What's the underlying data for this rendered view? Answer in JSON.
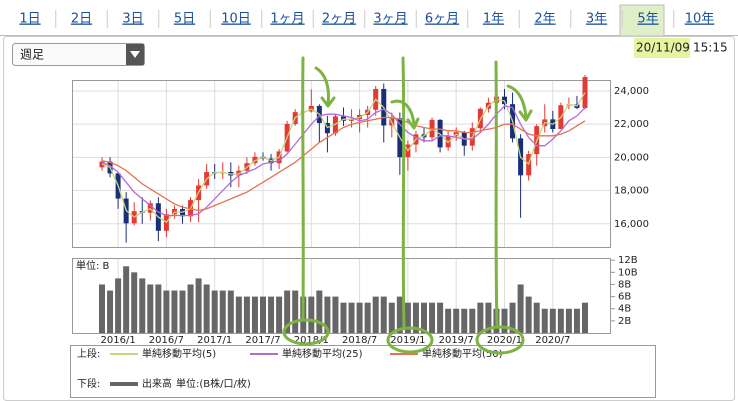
{
  "tabs": [
    "1日",
    "2日",
    "3日",
    "5日",
    "10日",
    "1ヶ月",
    "2ヶ月",
    "3ヶ月",
    "6ヶ月",
    "1年",
    "2年",
    "3年",
    "5年",
    "10年"
  ],
  "dropdown": "週足",
  "date": "20/11/09",
  "time": "15:15",
  "legend": {
    "upper_label": "上段:",
    "lower_label": "下段:",
    "volume_unit": "単位:(B株/口/枚)"
  },
  "chart_data": {
    "type": "candlestick",
    "x": [
      "2015/11",
      "2015/12",
      "2016/1",
      "2016/2",
      "2016/3",
      "2016/4",
      "2016/5",
      "2016/6",
      "2016/7",
      "2016/8",
      "2016/9",
      "2016/10",
      "2016/11",
      "2016/12",
      "2017/1",
      "2017/2",
      "2017/3",
      "2017/4",
      "2017/5",
      "2017/6",
      "2017/7",
      "2017/8",
      "2017/9",
      "2017/10",
      "2017/11",
      "2017/12",
      "2018/1",
      "2018/2",
      "2018/3",
      "2018/4",
      "2018/5",
      "2018/6",
      "2018/7",
      "2018/8",
      "2018/9",
      "2018/10",
      "2018/11",
      "2018/12",
      "2019/1",
      "2019/2",
      "2019/3",
      "2019/4",
      "2019/5",
      "2019/6",
      "2019/7",
      "2019/8",
      "2019/9",
      "2019/10",
      "2019/11",
      "2019/12",
      "2020/1",
      "2020/2",
      "2020/3",
      "2020/4",
      "2020/5",
      "2020/6",
      "2020/7",
      "2020/8",
      "2020/9",
      "2020/10",
      "2020/11"
    ],
    "open": [
      19400,
      19747,
      19034,
      17518,
      16027,
      16759,
      16666,
      17235,
      15576,
      16569,
      16887,
      16450,
      17425,
      18308,
      19114,
      19041,
      19119,
      18909,
      19197,
      19651,
      20033,
      19925,
      19646,
      20356,
      22012,
      22725,
      22765,
      23098,
      22068,
      21454,
      22468,
      22202,
      22305,
      22554,
      22865,
      24120,
      21920,
      22351,
      20015,
      20773,
      21385,
      21206,
      22259,
      20601,
      21276,
      21522,
      20704,
      21756,
      22927,
      23294,
      23657,
      23205,
      21143,
      18917,
      20194,
      21878,
      22288,
      21710,
      23140,
      23185,
      22977
    ],
    "high": [
      20012,
      20012,
      19100,
      17900,
      17300,
      17600,
      17400,
      17600,
      16900,
      17100,
      17100,
      17600,
      18700,
      19600,
      19600,
      19700,
      19700,
      19500,
      20000,
      20300,
      20300,
      20200,
      20500,
      22200,
      22900,
      23000,
      24100,
      23200,
      22500,
      22600,
      23000,
      22900,
      22900,
      23100,
      24300,
      24448,
      22700,
      22700,
      21000,
      21600,
      21800,
      22400,
      22300,
      21600,
      21800,
      21600,
      22100,
      23000,
      23600,
      24100,
      24115,
      23900,
      21400,
      20400,
      22000,
      23200,
      22800,
      23300,
      23600,
      23700,
      24962
    ],
    "low": [
      19200,
      18800,
      16900,
      14865,
      15900,
      16000,
      16200,
      14952,
      15200,
      16300,
      16000,
      16100,
      16100,
      18100,
      18700,
      18700,
      18200,
      18200,
      19000,
      19500,
      19800,
      19200,
      19300,
      20300,
      21900,
      22200,
      22700,
      20900,
      20300,
      21300,
      21900,
      21800,
      21500,
      21800,
      22500,
      20900,
      21200,
      18949,
      19200,
      20300,
      20900,
      21000,
      20300,
      20400,
      21000,
      20100,
      20400,
      21600,
      22700,
      23100,
      22900,
      20900,
      16358,
      18600,
      19500,
      21500,
      21500,
      21700,
      22900,
      22900,
      22900
    ],
    "close": [
      19747,
      19034,
      17518,
      16027,
      16759,
      16666,
      17235,
      15576,
      16569,
      16887,
      16450,
      17425,
      18308,
      19114,
      19041,
      19119,
      18909,
      19197,
      19651,
      20033,
      19925,
      19646,
      20356,
      22012,
      22725,
      22765,
      23098,
      22068,
      21454,
      22468,
      22202,
      22305,
      22554,
      22865,
      24120,
      21920,
      22351,
      20015,
      20773,
      21385,
      21206,
      22259,
      20601,
      21276,
      21522,
      20704,
      21756,
      22927,
      23294,
      23657,
      23205,
      21143,
      18917,
      20194,
      21878,
      22288,
      21710,
      23140,
      23185,
      22977,
      24839
    ],
    "up_color": "#e53935",
    "down_color": "#1a2f7a",
    "series": [
      {
        "name": "単純移動平均(5)",
        "color": "#c5d67a",
        "values": [
          19600,
          19400,
          18300,
          16800,
          16400,
          16700,
          16900,
          16400,
          16100,
          16700,
          16700,
          16900,
          17900,
          18700,
          19100,
          19100,
          19000,
          19000,
          19400,
          19800,
          20000,
          19800,
          20000,
          21200,
          22400,
          22700,
          22900,
          22600,
          21800,
          22000,
          22300,
          22300,
          22400,
          22700,
          23500,
          23000,
          22100,
          21200,
          20400,
          21100,
          21300,
          21700,
          21400,
          20900,
          21400,
          21100,
          21200,
          22300,
          23100,
          23500,
          23400,
          22200,
          20000,
          19600,
          21000,
          22100,
          22000,
          22400,
          23200,
          23100,
          23900
        ]
      },
      {
        "name": "単純移動平均(25)",
        "color": "#b36ad9",
        "values": [
          19700,
          19500,
          19100,
          18500,
          17900,
          17500,
          17100,
          16700,
          16500,
          16500,
          16500,
          16500,
          16600,
          17000,
          17500,
          18000,
          18500,
          18900,
          19100,
          19300,
          19600,
          19700,
          19800,
          20200,
          20800,
          21400,
          22000,
          22500,
          22600,
          22600,
          22500,
          22400,
          22200,
          22300,
          22700,
          22900,
          22600,
          22000,
          21500,
          21200,
          21000,
          21000,
          21300,
          21300,
          21200,
          21100,
          21100,
          21500,
          22000,
          22600,
          23100,
          23000,
          22000,
          21200,
          20700,
          20700,
          21100,
          21600,
          22200,
          22500,
          23000
        ]
      },
      {
        "name": "単純移動平均(50)",
        "color": "#e8724f",
        "values": [
          19800,
          19700,
          19500,
          19200,
          18800,
          18400,
          18100,
          17800,
          17500,
          17200,
          17000,
          16900,
          16800,
          16900,
          17100,
          17300,
          17500,
          17700,
          17900,
          18200,
          18500,
          18800,
          19100,
          19400,
          19700,
          20100,
          20500,
          20900,
          21200,
          21500,
          21800,
          22000,
          22100,
          22200,
          22300,
          22400,
          22400,
          22300,
          22100,
          21900,
          21800,
          21700,
          21700,
          21600,
          21600,
          21500,
          21500,
          21600,
          21700,
          21800,
          22000,
          22000,
          21700,
          21400,
          21300,
          21300,
          21300,
          21400,
          21600,
          21900,
          22200
        ]
      }
    ],
    "ylim": [
      14600,
      24600
    ],
    "yticks": [
      {
        "value": 16000,
        "label": "16,000"
      },
      {
        "value": 18000,
        "label": "18,000"
      },
      {
        "value": 20000,
        "label": "20,000"
      },
      {
        "value": 22000,
        "label": "22,000"
      },
      {
        "value": 24000,
        "label": "24,000"
      }
    ],
    "grid": true,
    "volume": {
      "name": "出来高",
      "unit_label": "単位: B",
      "color": "#666666",
      "values": [
        8,
        7,
        9,
        11,
        10,
        9,
        8,
        8,
        7,
        7,
        7,
        8,
        9,
        8,
        7,
        7,
        7,
        6,
        6,
        6,
        6,
        6,
        6,
        7,
        7,
        6,
        6,
        7,
        6,
        6,
        5,
        5,
        5,
        5,
        6,
        6,
        5,
        6,
        5,
        5,
        5,
        5,
        5,
        4,
        4,
        4,
        4,
        5,
        5,
        4,
        4,
        5,
        8,
        6,
        5,
        4,
        4,
        4,
        4,
        4,
        5
      ],
      "ylim": [
        0,
        12.2
      ],
      "yticks": [
        {
          "value": 2,
          "label": "2B"
        },
        {
          "value": 4,
          "label": "4B"
        },
        {
          "value": 6,
          "label": "6B"
        },
        {
          "value": 8,
          "label": "8B"
        },
        {
          "value": 10,
          "label": "10B"
        },
        {
          "value": 12,
          "label": "12B"
        }
      ]
    }
  }
}
